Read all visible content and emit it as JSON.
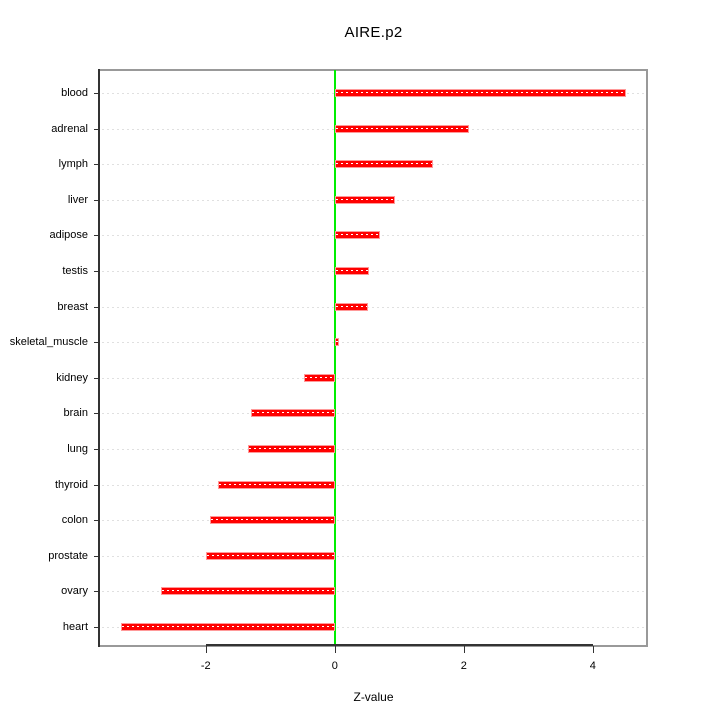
{
  "chart_data": {
    "type": "bar",
    "orientation": "horizontal",
    "title": "AIRE.p2",
    "xlabel": "Z-value",
    "ylabel": "",
    "categories": [
      "blood",
      "adrenal",
      "lymph",
      "liver",
      "adipose",
      "testis",
      "breast",
      "skeletal_muscle",
      "kidney",
      "brain",
      "lung",
      "thyroid",
      "colon",
      "prostate",
      "ovary",
      "heart"
    ],
    "values": [
      4.52,
      2.08,
      1.53,
      0.93,
      0.7,
      0.53,
      0.51,
      0.06,
      -0.47,
      -1.3,
      -1.35,
      -1.81,
      -1.94,
      -1.99,
      -2.69,
      -3.32
    ],
    "x_ticks": [
      -2,
      0,
      2,
      4
    ],
    "x_tick_labels": [
      "-2",
      "0",
      "2",
      "4"
    ],
    "xlim": [
      -3.64,
      4.84
    ],
    "grid": "dotted horizontal line per category",
    "legend": "none",
    "zero_reference_line": 0,
    "colors": {
      "bar_fill": "#FF0000",
      "bar_border": "#FF9999",
      "bar_inner_dash": "#FFFFFF",
      "zero_line": "#00EE00",
      "gridline": "#E0E0E0",
      "box": "#999999",
      "axis_line": "#333333",
      "text": "#000000",
      "background": "#FFFFFF"
    }
  }
}
